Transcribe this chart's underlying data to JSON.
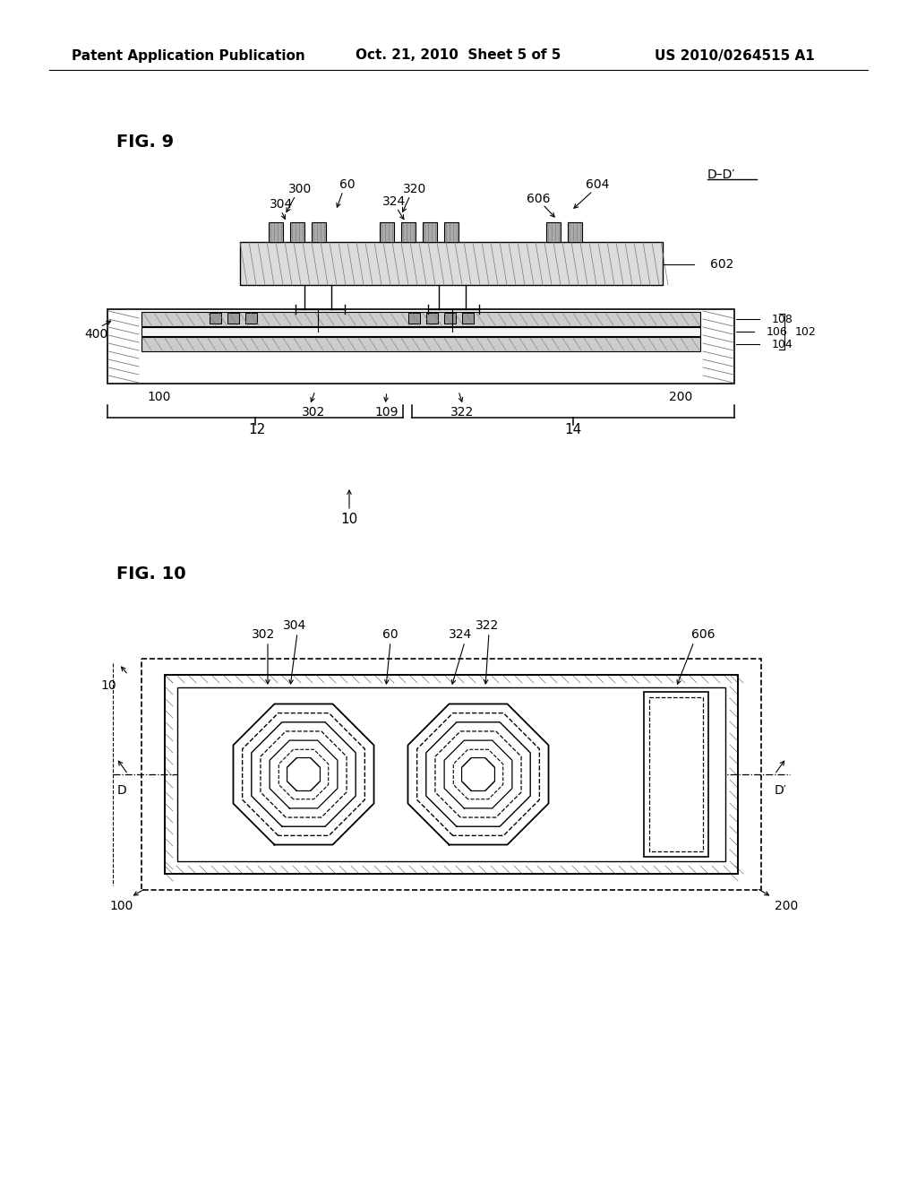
{
  "bg_color": "#ffffff",
  "text_color": "#000000",
  "header_left": "Patent Application Publication",
  "header_mid": "Oct. 21, 2010  Sheet 5 of 5",
  "header_right": "US 2010/0264515 A1",
  "fig9_label": "FIG. 9",
  "fig10_label": "FIG. 10",
  "line_color": "#000000",
  "hatch_color": "#777777",
  "gray_fill": "#cccccc",
  "light_gray": "#e8e8e8"
}
